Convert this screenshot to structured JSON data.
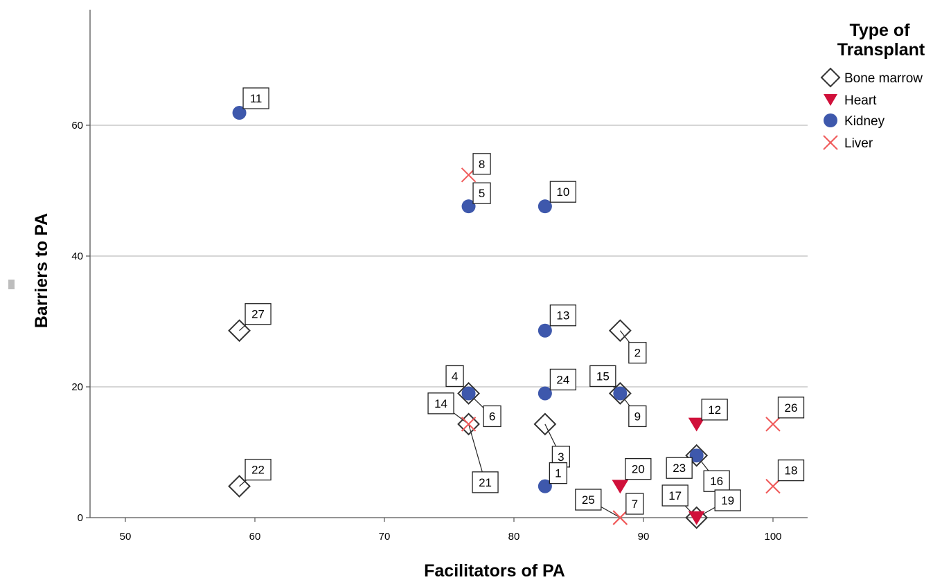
{
  "chart_data": {
    "type": "scatter",
    "title": "",
    "xlabel": "Facilitators of PA",
    "ylabel": "Barriers to PA",
    "xlim": [
      47,
      103
    ],
    "ylim": [
      0,
      78
    ],
    "x_ticks": [
      50,
      60,
      70,
      80,
      90,
      100
    ],
    "y_ticks": [
      0,
      20,
      40,
      60
    ],
    "grid": "horizontal",
    "legend_position": "right",
    "legend": {
      "title": "Type of Transplant",
      "title_lines": [
        "Type of",
        "Transplant"
      ]
    },
    "series": [
      {
        "name": "Bone marrow",
        "marker": "diamond-open",
        "color": "#333333",
        "points": [
          {
            "id": "2",
            "x": 88.2,
            "y": 28.6
          },
          {
            "id": "3",
            "x": 82.4,
            "y": 14.3
          },
          {
            "id": "4",
            "x": 76.5,
            "y": 19.0
          },
          {
            "id": "9",
            "x": 88.2,
            "y": 19.0
          },
          {
            "id": "14",
            "x": 76.5,
            "y": 14.3
          },
          {
            "id": "16",
            "x": 94.1,
            "y": 9.5
          },
          {
            "id": "17",
            "x": 94.1,
            "y": 0.0
          },
          {
            "id": "22",
            "x": 58.8,
            "y": 4.8
          },
          {
            "id": "27",
            "x": 58.8,
            "y": 28.6
          }
        ]
      },
      {
        "name": "Heart",
        "marker": "triangle-down",
        "color": "#d0103a",
        "points": [
          {
            "id": "12",
            "x": 94.1,
            "y": 14.3
          },
          {
            "id": "20",
            "x": 88.2,
            "y": 4.8
          },
          {
            "id": "19",
            "x": 94.1,
            "y": 0.0
          }
        ]
      },
      {
        "name": "Kidney",
        "marker": "circle",
        "color": "#3e58ac",
        "points": [
          {
            "id": "1",
            "x": 82.4,
            "y": 4.8
          },
          {
            "id": "5",
            "x": 76.5,
            "y": 47.6
          },
          {
            "id": "6",
            "x": 76.5,
            "y": 19.0
          },
          {
            "id": "10",
            "x": 82.4,
            "y": 47.6
          },
          {
            "id": "11",
            "x": 58.8,
            "y": 61.9
          },
          {
            "id": "13",
            "x": 82.4,
            "y": 28.6
          },
          {
            "id": "15",
            "x": 88.2,
            "y": 19.0
          },
          {
            "id": "23",
            "x": 94.1,
            "y": 9.5
          },
          {
            "id": "24",
            "x": 82.4,
            "y": 19.0
          }
        ]
      },
      {
        "name": "Liver",
        "marker": "x",
        "color": "#f05a5a",
        "points": [
          {
            "id": "7",
            "x": 88.2,
            "y": 0.0
          },
          {
            "id": "8",
            "x": 76.5,
            "y": 52.4
          },
          {
            "id": "18",
            "x": 100,
            "y": 4.8
          },
          {
            "id": "21",
            "x": 76.5,
            "y": 14.3
          },
          {
            "id": "25",
            "x": 88.2,
            "y": 0.0
          },
          {
            "id": "26",
            "x": 100,
            "y": 14.3
          }
        ]
      }
    ]
  }
}
